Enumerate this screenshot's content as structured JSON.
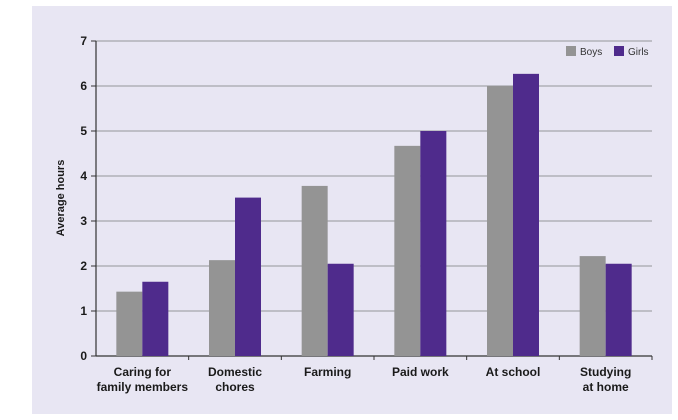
{
  "chart_data": {
    "type": "bar",
    "title": "",
    "xlabel": "",
    "ylabel": "Average hours",
    "ylim": [
      0,
      7
    ],
    "yticks": [
      0,
      1,
      2,
      3,
      4,
      5,
      6,
      7
    ],
    "grid": true,
    "legend_position": "top-right",
    "categories": [
      [
        "Caring for",
        "family members"
      ],
      [
        "Domestic",
        "chores"
      ],
      [
        "Farming"
      ],
      [
        "Paid work"
      ],
      [
        "At school"
      ],
      [
        "Studying",
        "at home"
      ]
    ],
    "series": [
      {
        "name": "Boys",
        "color": "#949494",
        "values": [
          1.43,
          2.13,
          3.78,
          4.67,
          6.0,
          2.22
        ]
      },
      {
        "name": "Girls",
        "color": "#4f2b8c",
        "values": [
          1.65,
          3.52,
          2.05,
          5.0,
          6.27,
          2.05
        ]
      }
    ]
  },
  "colors": {
    "panel_background": "#e8e6f3",
    "gridline": "#7a7a7a"
  }
}
